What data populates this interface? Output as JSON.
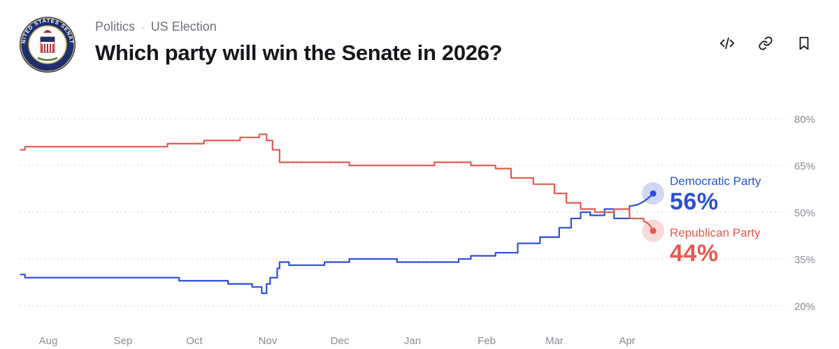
{
  "header": {
    "seal_text": "UNITED STATES SENATE",
    "breadcrumb": [
      "Politics",
      "US Election"
    ],
    "breadcrumb_separator": "·",
    "title": "Which party will win the Senate in 2026?"
  },
  "toolbar": {
    "icons": [
      "embed-icon",
      "link-icon",
      "bookmark-icon"
    ]
  },
  "colors": {
    "democratic": "#2a4fd6",
    "republican": "#e6584f",
    "grid": "#cfd1d6",
    "axis_text": "#8a8c93"
  },
  "chart_data": {
    "type": "line",
    "x_tick_labels": [
      "Aug",
      "Sep",
      "Oct",
      "Nov",
      "Dec",
      "Jan",
      "Feb",
      "Mar",
      "Apr"
    ],
    "y_tick_labels": [
      "80%",
      "65%",
      "50%",
      "35%",
      "20%"
    ],
    "ylim": [
      20,
      80
    ],
    "grid": true,
    "series": [
      {
        "name": "Democratic Party",
        "end_label": "56%",
        "points": [
          [
            "Jul 20",
            30
          ],
          [
            "Jul 22",
            29
          ],
          [
            "Aug 15",
            29
          ],
          [
            "Sep 10",
            29
          ],
          [
            "Sep 25",
            28
          ],
          [
            "Oct 15",
            27
          ],
          [
            "Oct 25",
            26
          ],
          [
            "Oct 29",
            24
          ],
          [
            "Oct 31",
            27
          ],
          [
            "Nov 2",
            29
          ],
          [
            "Nov 5",
            32
          ],
          [
            "Nov 6",
            34
          ],
          [
            "Nov 10",
            33
          ],
          [
            "Nov 25",
            34
          ],
          [
            "Dec 5",
            35
          ],
          [
            "Dec 25",
            34
          ],
          [
            "Jan 20",
            35
          ],
          [
            "Jan 25",
            36
          ],
          [
            "Feb 5",
            37
          ],
          [
            "Feb 15",
            40
          ],
          [
            "Feb 25",
            42
          ],
          [
            "Mar 3",
            45
          ],
          [
            "Mar 8",
            48
          ],
          [
            "Mar 12",
            50
          ],
          [
            "Mar 16",
            49
          ],
          [
            "Mar 22",
            51
          ],
          [
            "Mar 26",
            48
          ],
          [
            "Apr 2",
            52
          ],
          [
            "Apr 12",
            56
          ]
        ]
      },
      {
        "name": "Republican Party",
        "end_label": "44%",
        "points": [
          [
            "Jul 20",
            70
          ],
          [
            "Jul 22",
            71
          ],
          [
            "Aug 10",
            71
          ],
          [
            "Sep 10",
            71
          ],
          [
            "Sep 20",
            72
          ],
          [
            "Oct 5",
            73
          ],
          [
            "Oct 20",
            74
          ],
          [
            "Oct 28",
            75
          ],
          [
            "Oct 31",
            73
          ],
          [
            "Nov 3",
            70
          ],
          [
            "Nov 6",
            66
          ],
          [
            "Nov 15",
            66
          ],
          [
            "Dec 5",
            65
          ],
          [
            "Jan 10",
            66
          ],
          [
            "Jan 25",
            65
          ],
          [
            "Feb 5",
            64
          ],
          [
            "Feb 12",
            61
          ],
          [
            "Feb 22",
            59
          ],
          [
            "Mar 1",
            56
          ],
          [
            "Mar 6",
            53
          ],
          [
            "Mar 12",
            51
          ],
          [
            "Mar 18",
            50
          ],
          [
            "Mar 26",
            51
          ],
          [
            "Apr 2",
            48
          ],
          [
            "Apr 8",
            47
          ],
          [
            "Apr 12",
            44
          ]
        ]
      }
    ]
  }
}
